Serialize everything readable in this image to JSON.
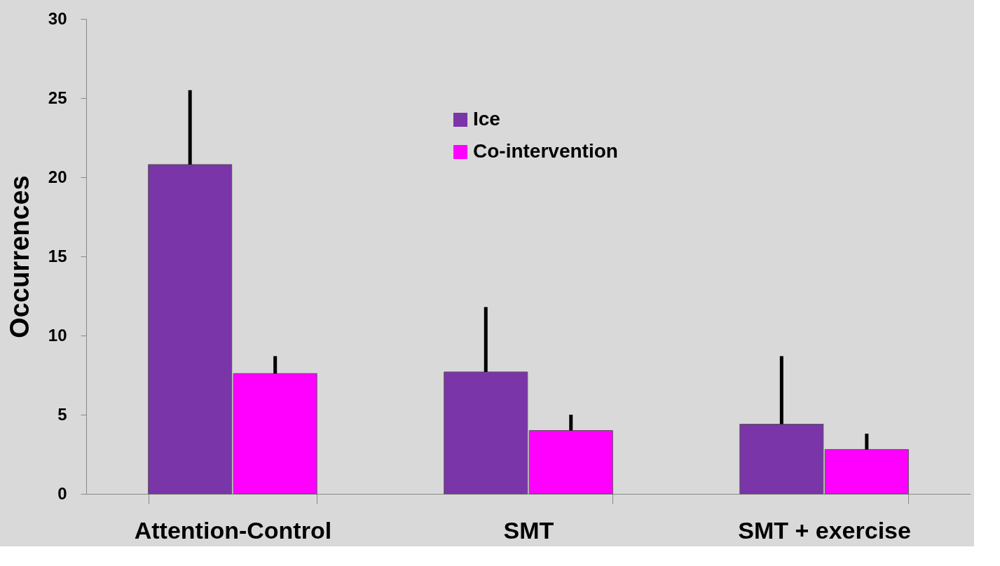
{
  "chart_data": {
    "type": "bar",
    "ylabel": "Occurrences",
    "categories": [
      "Attention-Control",
      "SMT",
      "SMT + exercise"
    ],
    "series": [
      {
        "name": "Ice",
        "color": "#7a35a8",
        "values": [
          20.8,
          7.7,
          4.4
        ],
        "errors": [
          [
            20.8,
            25.5
          ],
          [
            7.7,
            11.8
          ],
          [
            4.4,
            8.7
          ]
        ]
      },
      {
        "name": "Co-intervention",
        "color": "#ff00ff",
        "values": [
          7.6,
          4.0,
          2.8
        ],
        "errors": [
          [
            7.6,
            8.7
          ],
          [
            4.0,
            5.0
          ],
          [
            2.8,
            3.8
          ]
        ]
      }
    ],
    "ylim": [
      0,
      30
    ],
    "yticks": [
      0,
      5,
      10,
      15,
      20,
      25,
      30
    ],
    "legend": "top"
  }
}
